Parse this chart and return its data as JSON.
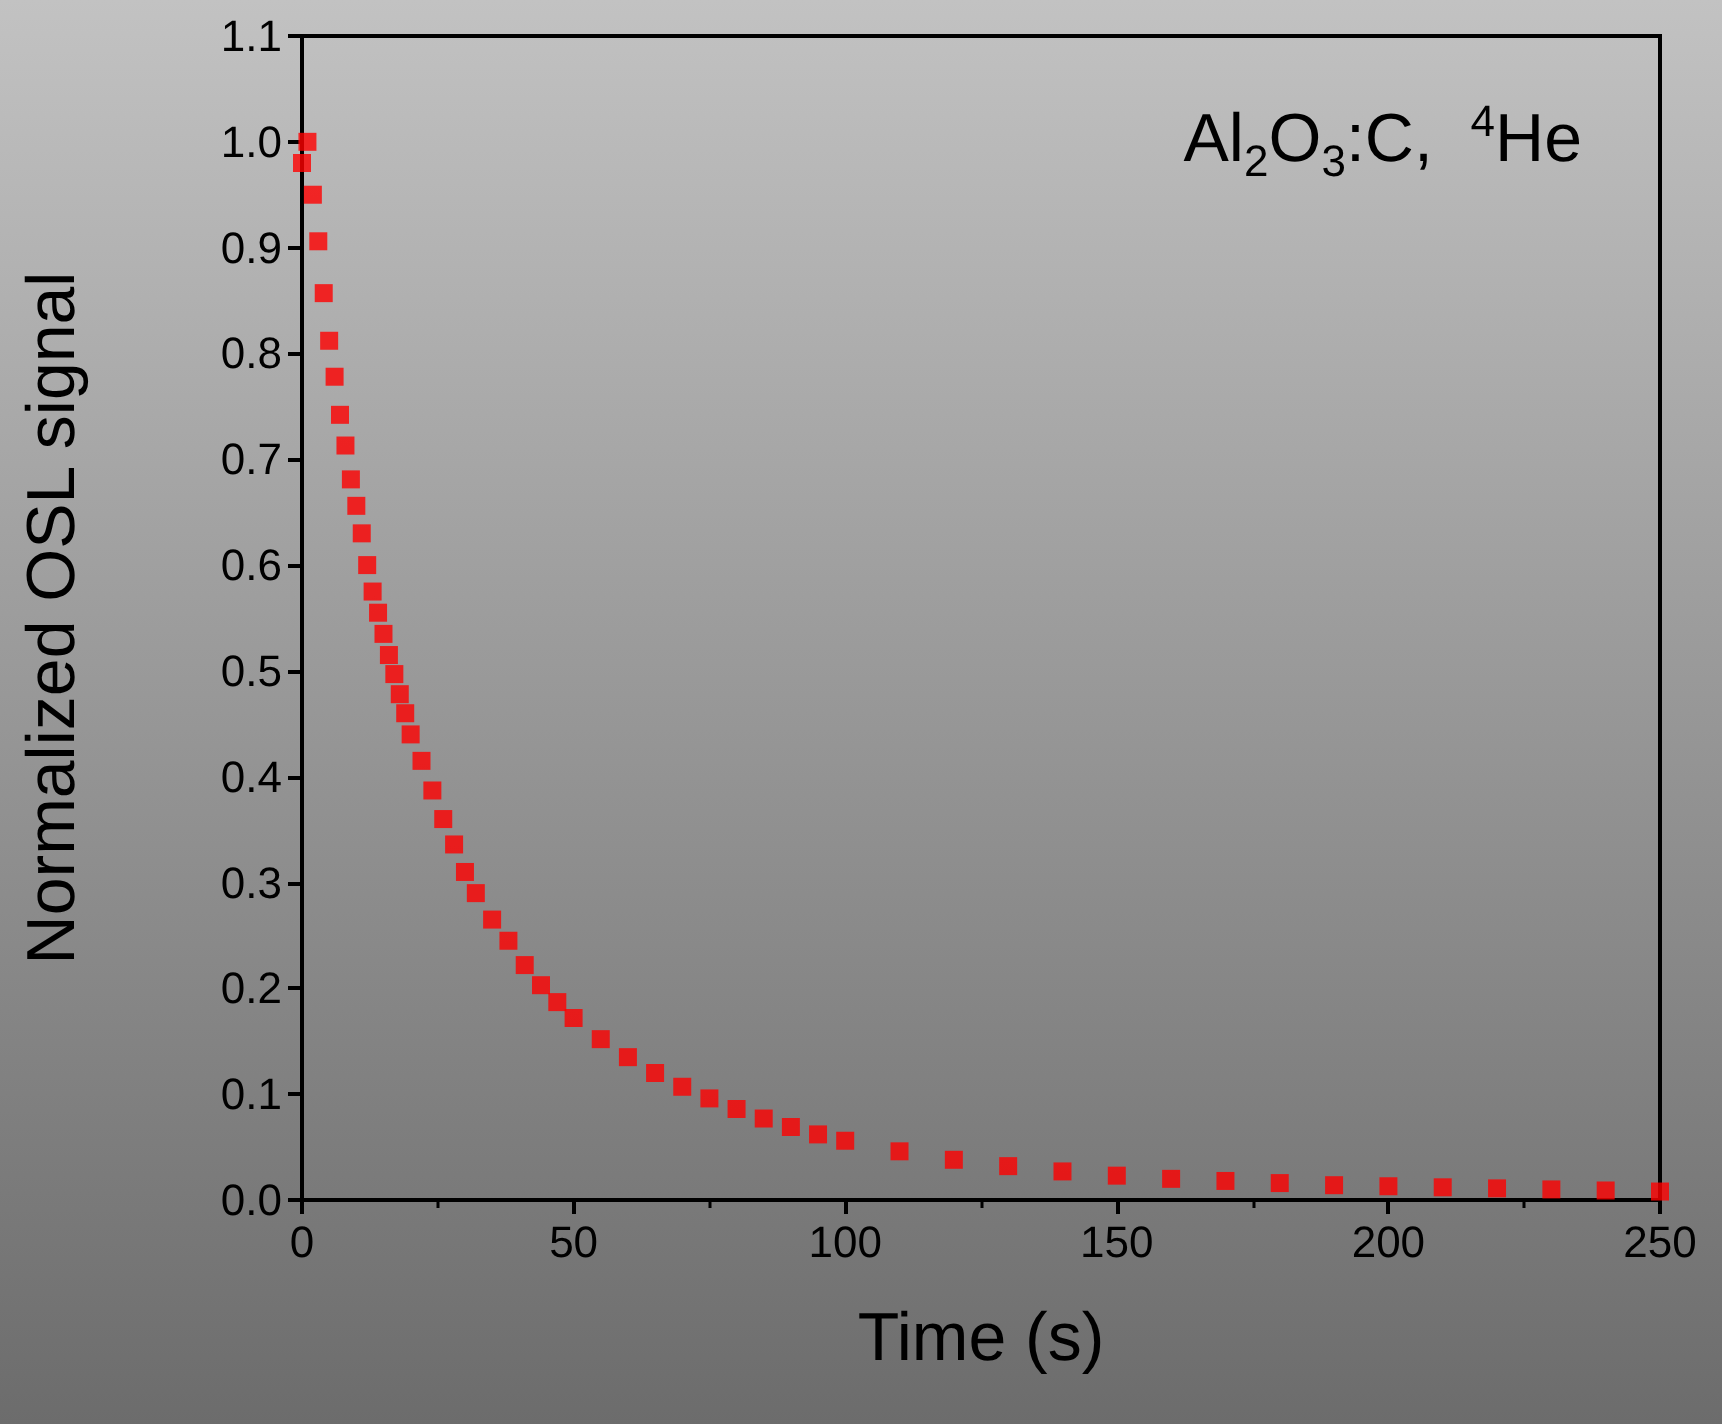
{
  "chart_data": {
    "type": "scatter",
    "xlabel": "Time (s)",
    "ylabel": "Normalized OSL signal",
    "annotations": [
      "Al$_{2}$O$_{3}$:C,  $^{4}$He"
    ],
    "x": [
      0,
      1,
      2,
      3,
      4,
      5,
      6,
      7,
      8,
      9,
      10,
      11,
      12,
      13,
      14,
      15,
      16,
      17,
      18,
      19,
      20,
      22,
      24,
      26,
      28,
      30,
      32,
      35,
      38,
      41,
      44,
      47,
      50,
      55,
      60,
      65,
      70,
      75,
      80,
      85,
      90,
      95,
      100,
      110,
      120,
      130,
      140,
      150,
      160,
      170,
      180,
      190,
      200,
      210,
      220,
      230,
      240,
      250
    ],
    "series": [
      {
        "color": "#ff0000",
        "values": [
          0.98,
          1.0,
          0.95,
          0.906,
          0.857,
          0.812,
          0.778,
          0.742,
          0.713,
          0.681,
          0.656,
          0.63,
          0.6,
          0.575,
          0.555,
          0.535,
          0.515,
          0.497,
          0.478,
          0.46,
          0.44,
          0.415,
          0.387,
          0.36,
          0.336,
          0.31,
          0.29,
          0.265,
          0.245,
          0.222,
          0.203,
          0.187,
          0.172,
          0.152,
          0.135,
          0.12,
          0.107,
          0.096,
          0.086,
          0.077,
          0.069,
          0.062,
          0.056,
          0.046,
          0.038,
          0.032,
          0.027,
          0.023,
          0.02,
          0.018,
          0.016,
          0.014,
          0.013,
          0.012,
          0.011,
          0.01,
          0.009,
          0.008
        ]
      }
    ],
    "xlim": [
      0,
      250
    ],
    "xticks": [
      0,
      50,
      100,
      150,
      200,
      250
    ],
    "ylim": [
      0,
      1.1
    ],
    "yticks": [
      "0.0",
      0.1,
      0.2,
      0.3,
      0.4,
      0.5,
      0.6,
      0.7,
      0.8,
      0.9,
      "1.0",
      1.1
    ],
    "marker": "square",
    "grid": false
  }
}
